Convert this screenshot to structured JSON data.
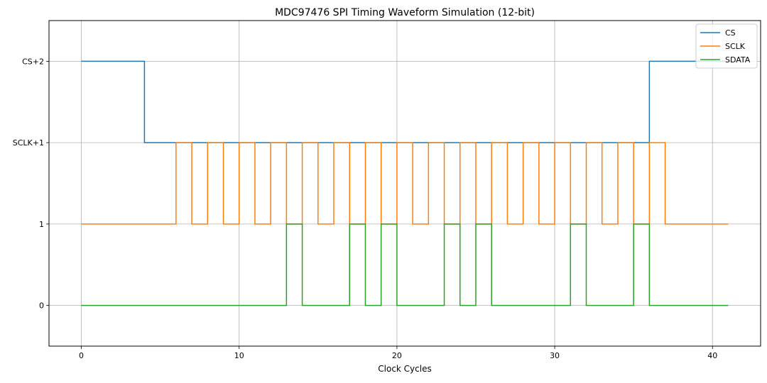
{
  "chart_data": {
    "type": "line",
    "step": "post",
    "title": "MDC97476 SPI Timing Waveform Simulation (12-bit)",
    "xlabel": "Clock Cycles",
    "ylabel": "",
    "xlim": [
      -2.05,
      43.05
    ],
    "ylim": [
      -0.5,
      3.5
    ],
    "xticks": [
      0,
      10,
      20,
      30,
      40
    ],
    "xtick_labels": [
      "0",
      "10",
      "20",
      "30",
      "40"
    ],
    "yticks": [
      0,
      1,
      2,
      3
    ],
    "ytick_labels": [
      "0",
      "1",
      "SCLK+1",
      "CS+2"
    ],
    "grid": true,
    "legend_position": "upper right",
    "series": [
      {
        "name": "CS",
        "color": "#1f77b4",
        "x": [
          0,
          4,
          36,
          41
        ],
        "y": [
          3,
          2,
          3,
          3
        ]
      },
      {
        "name": "SCLK",
        "color": "#ff7f0e",
        "x": [
          0,
          6,
          7,
          8,
          9,
          10,
          11,
          12,
          13,
          14,
          15,
          16,
          17,
          18,
          19,
          20,
          21,
          22,
          23,
          24,
          25,
          26,
          27,
          28,
          29,
          30,
          31,
          32,
          33,
          34,
          35,
          36,
          37,
          41
        ],
        "y": [
          1,
          2,
          1,
          2,
          1,
          2,
          1,
          2,
          1,
          2,
          1,
          2,
          1,
          2,
          1,
          2,
          1,
          2,
          1,
          2,
          1,
          2,
          1,
          2,
          1,
          2,
          1,
          2,
          1,
          2,
          1,
          2,
          1,
          1
        ]
      },
      {
        "name": "SDATA",
        "color": "#2ca02c",
        "x": [
          0,
          13,
          14,
          17,
          18,
          19,
          20,
          23,
          24,
          25,
          26,
          31,
          32,
          35,
          36,
          41
        ],
        "y": [
          0,
          1,
          0,
          1,
          0,
          1,
          0,
          1,
          0,
          1,
          0,
          1,
          0,
          1,
          0,
          0
        ]
      }
    ]
  }
}
